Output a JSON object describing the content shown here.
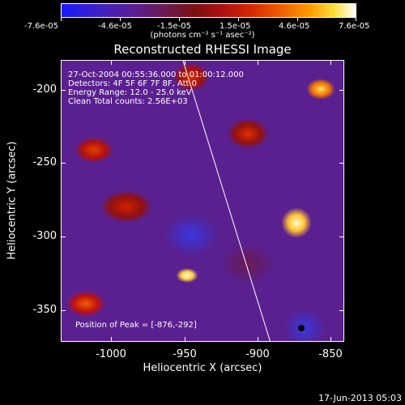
{
  "colorbar": {
    "tick_labels": [
      "-7.6e-05",
      "-4.6e-05",
      "-1.5e-05",
      "1.5e-05",
      "4.6e-05",
      "7.6e-05"
    ],
    "units": "(photons cm⁻² s⁻¹ asec⁻²)"
  },
  "plot": {
    "title": "Reconstructed RHESSI Image",
    "annotations": [
      "27-Oct-2004 00:55:36.000 to 01:00:12.000",
      "Detectors: 4F 5F 6F 7F 8F, Att 0",
      "Energy Range: 12.0 - 25.0 keV",
      "Clean    Total counts: 2.56E+03"
    ],
    "peak_label": "Position of Peak = [-876,-292]"
  },
  "axes": {
    "x_title": "Heliocentric X (arcsec)",
    "y_title": "Heliocentric Y (arcsec)",
    "x_ticks": [
      "-1000",
      "-950",
      "-900",
      "-850"
    ],
    "y_ticks": [
      "-200",
      "-250",
      "-300",
      "-350"
    ]
  },
  "footer": {
    "date": "17-Jun-2013 05:03"
  }
}
